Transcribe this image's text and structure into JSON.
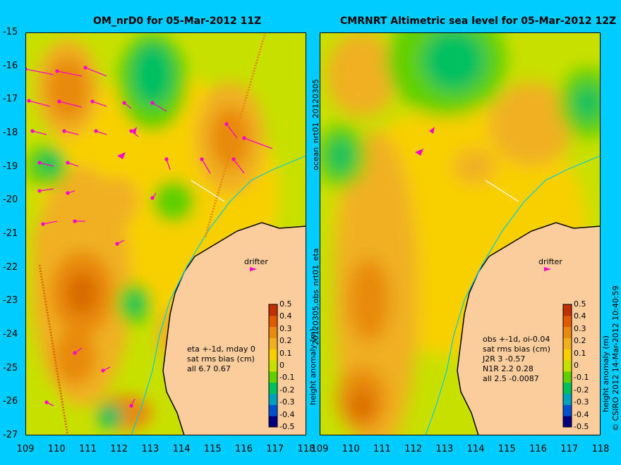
{
  "titles": {
    "left": "OM_nrD0 for 05-Mar-2012 11Z",
    "right": "CMRNRT Altimetric sea level  for 05-Mar-2012 12Z"
  },
  "axes": {
    "lat_labels": [
      "-15",
      "-16",
      "-17",
      "-18",
      "-19",
      "-20",
      "-21",
      "-22",
      "-23",
      "-24",
      "-25",
      "-26",
      "-27"
    ],
    "lon_labels_left": [
      "109",
      "110",
      "111",
      "112",
      "113",
      "114",
      "115",
      "116",
      "117",
      "118"
    ],
    "lon_labels_right": [
      "109",
      "110",
      "111",
      "112",
      "113",
      "114",
      "115",
      "116",
      "117",
      "118"
    ],
    "lat_range": [
      -27,
      -15
    ],
    "lon_range": [
      109,
      118
    ]
  },
  "side_texts": {
    "left_vertical_top": "ocean_nrt01_20120305",
    "left_vertical_bottom": "20120305.obs_nrt01_eta",
    "right_vertical": "height anomaly (m)",
    "copyright": "© CSIRO 2012   14-Mar-2012 10:40:59"
  },
  "colorbar": {
    "ticks": [
      "0.5",
      "0.4",
      "0.3",
      "0.2",
      "0.1",
      "0",
      "-0.1",
      "-0.2",
      "-0.3",
      "-0.4",
      "-0.5"
    ],
    "label": "height anomaly (m)",
    "colors": [
      "#c03000",
      "#e05a00",
      "#e88a10",
      "#f0b020",
      "#f8d000",
      "#c8e000",
      "#60d000",
      "#00c060",
      "#00a0c0",
      "#0050d0",
      "#000080"
    ]
  },
  "drifter_label": "drifter",
  "stats_left": [
    "eta +-1d, mday 0",
    "sat rms bias (cm)",
    "all 6.7 0.67"
  ],
  "stats_right": [
    "obs +-1d, oi-0.04",
    "sat rms bias (cm)",
    "J2R   3 -0.57",
    "N1R   2.2 0.28",
    "all 2.5 -0.0087"
  ],
  "colors": {
    "background": "#00ccff",
    "land": "#fbcc9c",
    "field_base": "#c8e000",
    "vector": "#ff00cc"
  }
}
